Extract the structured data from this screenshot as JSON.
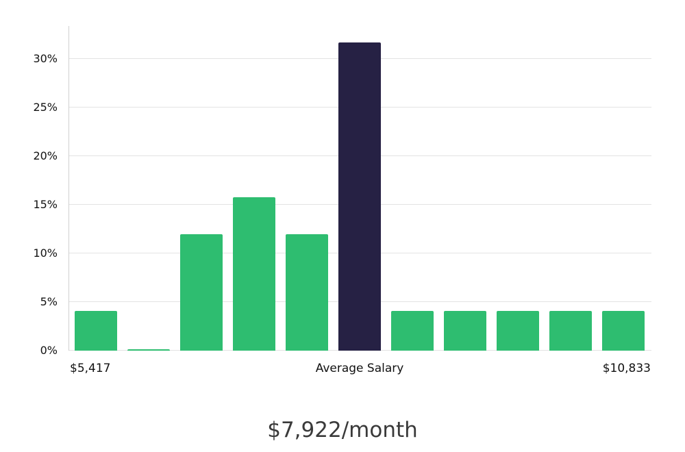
{
  "chart_data": {
    "type": "bar",
    "title": "$7,922/month",
    "x_axis_labels": {
      "left": "$5,417",
      "center": "Average Salary",
      "right": "$10,833"
    },
    "y_ticks": [
      "0%",
      "5%",
      "10%",
      "15%",
      "20%",
      "25%",
      "30%"
    ],
    "y_tick_values": [
      0,
      5,
      10,
      15,
      20,
      25,
      30
    ],
    "ylim": [
      0,
      33.4
    ],
    "categories": [
      "",
      "",
      "",
      "",
      "",
      "Average Salary",
      "",
      "",
      "",
      "",
      ""
    ],
    "values": [
      4.1,
      0.15,
      12,
      15.8,
      12,
      31.7,
      4.1,
      4.1,
      4.1,
      4.1,
      4.1
    ],
    "highlight_index": 5,
    "bar_color": "#2EBD70",
    "highlight_color": "#262144",
    "grid": true,
    "gridline_color": "#e3e3e3",
    "legend": "none"
  }
}
